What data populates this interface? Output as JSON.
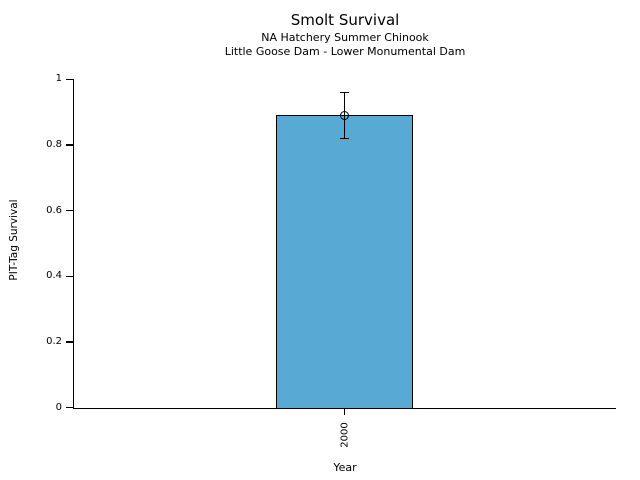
{
  "chart_data": {
    "type": "bar",
    "title": "Smolt Survival",
    "subtitle1": "NA Hatchery Summer Chinook",
    "subtitle2": "Little Goose Dam - Lower Monumental Dam",
    "xlabel": "Year",
    "ylabel": "PIT-Tag Survival",
    "categories": [
      "2000"
    ],
    "values": [
      0.89
    ],
    "error_lower": [
      0.82
    ],
    "error_upper": [
      0.96
    ],
    "marker_values": [
      0.89
    ],
    "ylim": [
      0,
      1
    ],
    "ytick_labels": [
      "0",
      "0.2",
      "0.4",
      "0.6",
      "0.8",
      "1"
    ],
    "ytick_values": [
      0,
      0.2,
      0.4,
      0.6,
      0.8,
      1
    ],
    "grid": false,
    "legend": "none",
    "bar_color": "#58a9d4",
    "bar_edge_color": "#000000",
    "axis_color": "#000000",
    "background_color": "#ffffff"
  }
}
